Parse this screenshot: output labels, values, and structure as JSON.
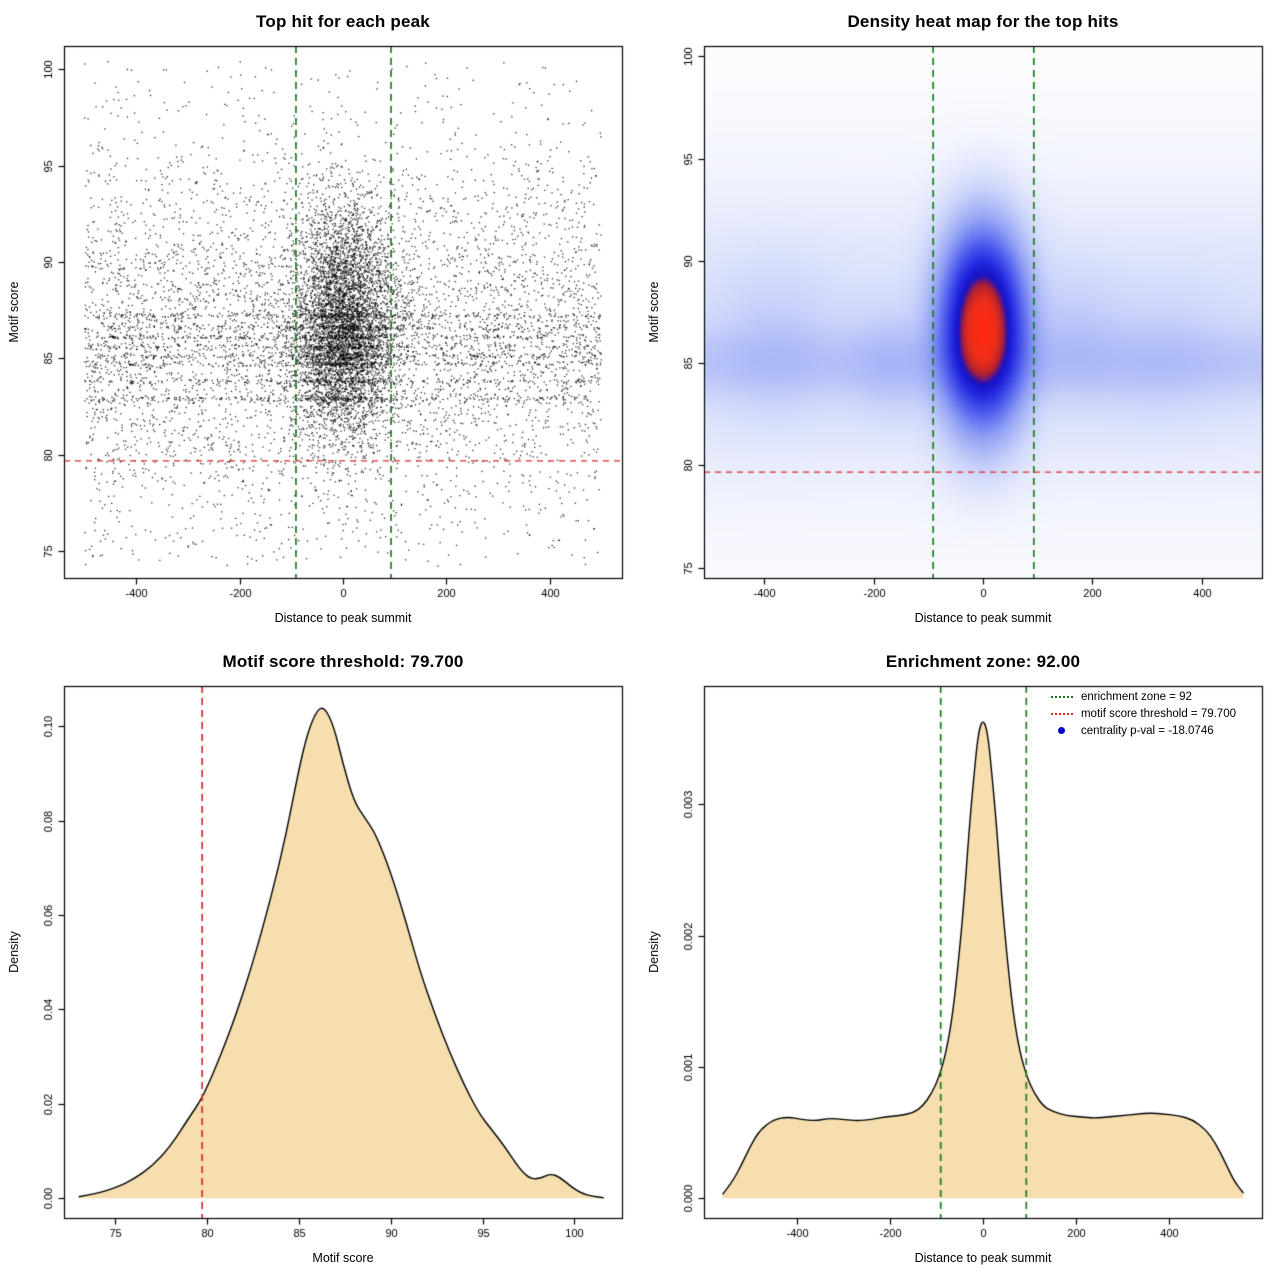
{
  "page": {
    "background": "#ffffff"
  },
  "colors": {
    "enrichment_zone_line": "#1c7c1c",
    "threshold_line": "#e02828",
    "centrality_dot": "#0000cc",
    "density_fill": "#f6deaf",
    "curve_stroke": "#000000",
    "scatter_points": "#000000"
  },
  "chart_data": [
    {
      "type": "scatter",
      "title": "Top hit for each peak",
      "xlabel": "Distance to peak summit",
      "ylabel": "Motif score",
      "xlim": [
        -540,
        540
      ],
      "ylim": [
        73.6,
        101.2
      ],
      "xticks": [
        -400,
        -200,
        0,
        200,
        400
      ],
      "xtick_labels": [
        "-400",
        "-200",
        "0",
        "200",
        "400"
      ],
      "yticks": [
        75,
        80,
        85,
        90,
        95,
        100
      ],
      "ytick_labels": [
        "75",
        "80",
        "85",
        "90",
        "95",
        "100"
      ],
      "point_color": "#000000",
      "vlines": [
        {
          "x": -92,
          "color": "#1c7c1c",
          "style": "dashed"
        },
        {
          "x": 92,
          "color": "#1c7c1c",
          "style": "dashed"
        }
      ],
      "hlines": [
        {
          "y": 79.7,
          "color": "#e02828",
          "style": "dashed"
        }
      ],
      "points": {
        "seed": 1337,
        "background": {
          "n": 6400,
          "x_min": -500,
          "x_max": 500,
          "y_mean": 86.2,
          "y_sd": 4.6
        },
        "cluster": {
          "n": 5600,
          "x_mean": 0,
          "x_sd": 50,
          "y_mean": 86.9,
          "y_sd": 3.1
        },
        "band_scores": [
          82.9,
          83.8,
          84.7,
          85.1,
          85.6,
          86.1,
          86.6,
          87.2
        ],
        "band_fraction": 0.2,
        "uniform_fraction": 0.12,
        "y_min": 74.2,
        "y_max": 100.4
      }
    },
    {
      "type": "heatmap",
      "title": "Density heat map for the top hits",
      "xlabel": "Distance to peak summit",
      "ylabel": "Motif score",
      "xlim": [
        -510,
        510
      ],
      "ylim": [
        74.5,
        100.5
      ],
      "xticks": [
        -400,
        -200,
        0,
        200,
        400
      ],
      "xtick_labels": [
        "-400",
        "-200",
        "0",
        "200",
        "400"
      ],
      "yticks": [
        75,
        80,
        85,
        90,
        95,
        100
      ],
      "ytick_labels": [
        "75",
        "80",
        "85",
        "90",
        "95",
        "100"
      ],
      "vlines": [
        {
          "x": -92,
          "color": "#1c7c1c",
          "style": "dashed"
        },
        {
          "x": 92,
          "color": "#1c7c1c",
          "style": "dashed"
        }
      ],
      "hlines": [
        {
          "y": 79.7,
          "color": "#e02828",
          "style": "dashed"
        }
      ],
      "density": {
        "grid": [
          150,
          128
        ],
        "gamma": 0.48,
        "components": [
          {
            "weight": 0.58,
            "x_mean": 0,
            "x_sd": 45,
            "y_mean": 86.7,
            "y_sd": 2.7
          },
          {
            "weight": 0.3,
            "y_mean": 86.2,
            "y_sd": 4.6
          },
          {
            "weight": 0.12,
            "y_mean": 85.0,
            "y_sd": 1.15
          },
          {
            "weight": 0.025,
            "x_mean": -380,
            "x_sd": 70,
            "y_mean": 86.0,
            "y_sd": 2.4
          },
          {
            "weight": 0.02,
            "x_mean": 320,
            "x_sd": 80,
            "y_mean": 85.5,
            "y_sd": 2.2
          },
          {
            "weight": 0.015,
            "x_mean": -170,
            "x_sd": 50,
            "y_mean": 85.0,
            "y_sd": 1.8
          },
          {
            "weight": 0.015,
            "x_mean": 170,
            "x_sd": 50,
            "y_mean": 86.5,
            "y_sd": 2.0
          }
        ],
        "colormap": [
          [
            0.0,
            "#ffffff"
          ],
          [
            0.08,
            "#f2f4fd"
          ],
          [
            0.22,
            "#ccd5fa"
          ],
          [
            0.4,
            "#93a2f5"
          ],
          [
            0.58,
            "#4d5bee"
          ],
          [
            0.72,
            "#2024dd"
          ],
          [
            0.8,
            "#1712c4"
          ],
          [
            0.86,
            "#b02030"
          ],
          [
            0.93,
            "#e82e1c"
          ],
          [
            1.0,
            "#ff2a10"
          ]
        ]
      }
    },
    {
      "type": "area",
      "title": "Motif score threshold: 79.700",
      "xlabel": "Motif score",
      "ylabel": "Density",
      "xlim": [
        72.2,
        102.6
      ],
      "ylim": [
        -0.0042,
        0.1085
      ],
      "xticks": [
        75,
        80,
        85,
        90,
        95,
        100
      ],
      "xtick_labels": [
        "75",
        "80",
        "85",
        "90",
        "95",
        "100"
      ],
      "yticks": [
        0.0,
        0.02,
        0.04,
        0.06,
        0.08,
        0.1
      ],
      "ytick_labels": [
        "0.00",
        "0.02",
        "0.04",
        "0.06",
        "0.08",
        "0.10"
      ],
      "fill": "#f6deaf",
      "stroke": "#000000",
      "vlines": [
        {
          "x": 79.7,
          "color": "#e02828",
          "style": "dashed"
        }
      ],
      "curve": {
        "x": [
          73,
          74,
          75,
          76,
          77,
          78,
          79,
          79.7,
          80.5,
          81.5,
          82.5,
          83.5,
          84.3,
          85,
          85.5,
          86,
          86.4,
          86.9,
          87.4,
          88,
          88.6,
          89.2,
          90,
          90.8,
          91.6,
          92.4,
          93.2,
          94,
          94.8,
          95.5,
          96.2,
          97,
          97.6,
          98.2,
          98.7,
          99.2,
          99.8,
          100.4,
          101,
          101.6
        ],
        "y": [
          0.0003,
          0.001,
          0.0022,
          0.004,
          0.0068,
          0.011,
          0.017,
          0.021,
          0.028,
          0.038,
          0.05,
          0.064,
          0.077,
          0.091,
          0.099,
          0.1035,
          0.104,
          0.1,
          0.092,
          0.084,
          0.0805,
          0.077,
          0.069,
          0.059,
          0.048,
          0.039,
          0.031,
          0.024,
          0.018,
          0.0145,
          0.011,
          0.0063,
          0.004,
          0.0042,
          0.0052,
          0.0045,
          0.0025,
          0.001,
          0.0004,
          0.0001
        ]
      }
    },
    {
      "type": "area",
      "title": "Enrichment zone: 92.00",
      "xlabel": "Distance to peak summit",
      "ylabel": "Density",
      "xlim": [
        -600,
        600
      ],
      "ylim": [
        -0.00015,
        0.0039
      ],
      "xticks": [
        -400,
        -200,
        0,
        200,
        400
      ],
      "xtick_labels": [
        "-400",
        "-200",
        "0",
        "200",
        "400"
      ],
      "yticks": [
        0.0,
        0.001,
        0.002,
        0.003
      ],
      "ytick_labels": [
        "0.000",
        "0.001",
        "0.002",
        "0.003"
      ],
      "fill": "#f6deaf",
      "stroke": "#000000",
      "vlines": [
        {
          "x": -92,
          "color": "#1c7c1c",
          "style": "dashed"
        },
        {
          "x": 92,
          "color": "#1c7c1c",
          "style": "dashed"
        }
      ],
      "curve": {
        "x": [
          -560,
          -540,
          -520,
          -500,
          -480,
          -450,
          -420,
          -390,
          -360,
          -330,
          -300,
          -270,
          -240,
          -210,
          -180,
          -150,
          -130,
          -110,
          -95,
          -80,
          -65,
          -50,
          -40,
          -30,
          -20,
          -10,
          0,
          10,
          20,
          30,
          40,
          50,
          65,
          80,
          95,
          110,
          130,
          150,
          180,
          210,
          240,
          270,
          300,
          330,
          360,
          390,
          420,
          450,
          480,
          500,
          520,
          540,
          560
        ],
        "y": [
          3e-05,
          0.00012,
          0.00025,
          0.0004,
          0.00052,
          0.0006,
          0.00062,
          0.0006,
          0.00059,
          0.00061,
          0.0006,
          0.00059,
          0.0006,
          0.00062,
          0.00063,
          0.00065,
          0.0007,
          0.0008,
          0.00092,
          0.0011,
          0.0014,
          0.0019,
          0.0023,
          0.0028,
          0.0032,
          0.00355,
          0.00365,
          0.00355,
          0.0032,
          0.0028,
          0.0023,
          0.0019,
          0.0014,
          0.0011,
          0.00092,
          0.0008,
          0.0007,
          0.00066,
          0.00063,
          0.00062,
          0.00061,
          0.00062,
          0.00063,
          0.00064,
          0.00065,
          0.00064,
          0.00063,
          0.0006,
          0.00052,
          0.00042,
          0.00028,
          0.00013,
          4e-05
        ]
      },
      "legend": {
        "items": [
          {
            "swatch": "line",
            "color": "#1c7c1c",
            "label": "enrichment zone = 92"
          },
          {
            "swatch": "line",
            "color": "#e02828",
            "label": "motif score threshold = 79.700"
          },
          {
            "swatch": "dot",
            "color": "#0000cc",
            "label": "centrality p-val = -18.0746"
          }
        ]
      }
    }
  ]
}
